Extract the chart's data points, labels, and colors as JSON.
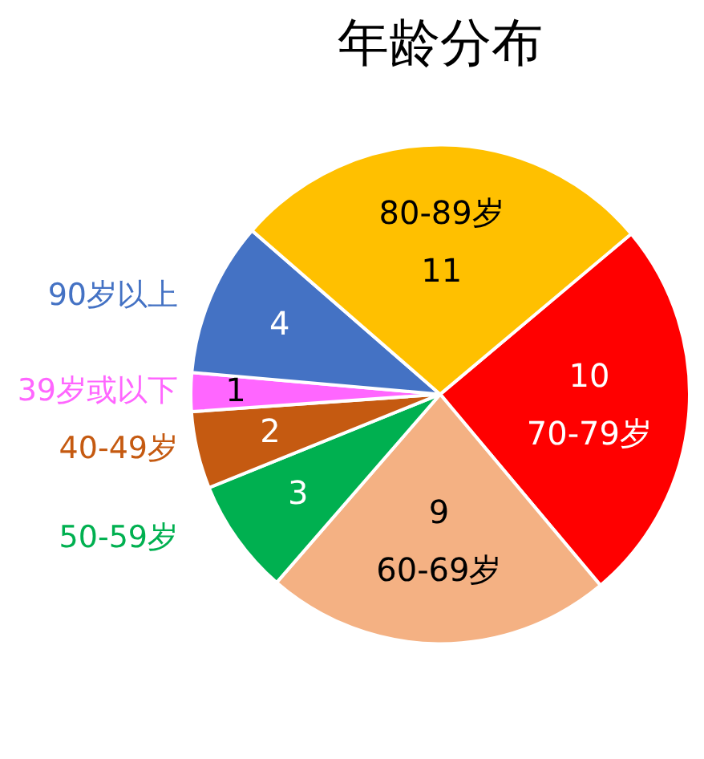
{
  "chart_data": {
    "type": "pie",
    "title": "年龄分布",
    "categories": [
      "70-79岁",
      "60-69岁",
      "50-59岁",
      "40-49岁",
      "39岁或以下",
      "90岁以上",
      "80-89岁"
    ],
    "values": [
      10,
      9,
      3,
      2,
      1,
      4,
      11
    ],
    "colors": [
      "#ff0000",
      "#f4b183",
      "#00b050",
      "#c55a11",
      "#ff66ff",
      "#4472c4",
      "#ffc000"
    ],
    "data_labels": true,
    "legend": false
  }
}
